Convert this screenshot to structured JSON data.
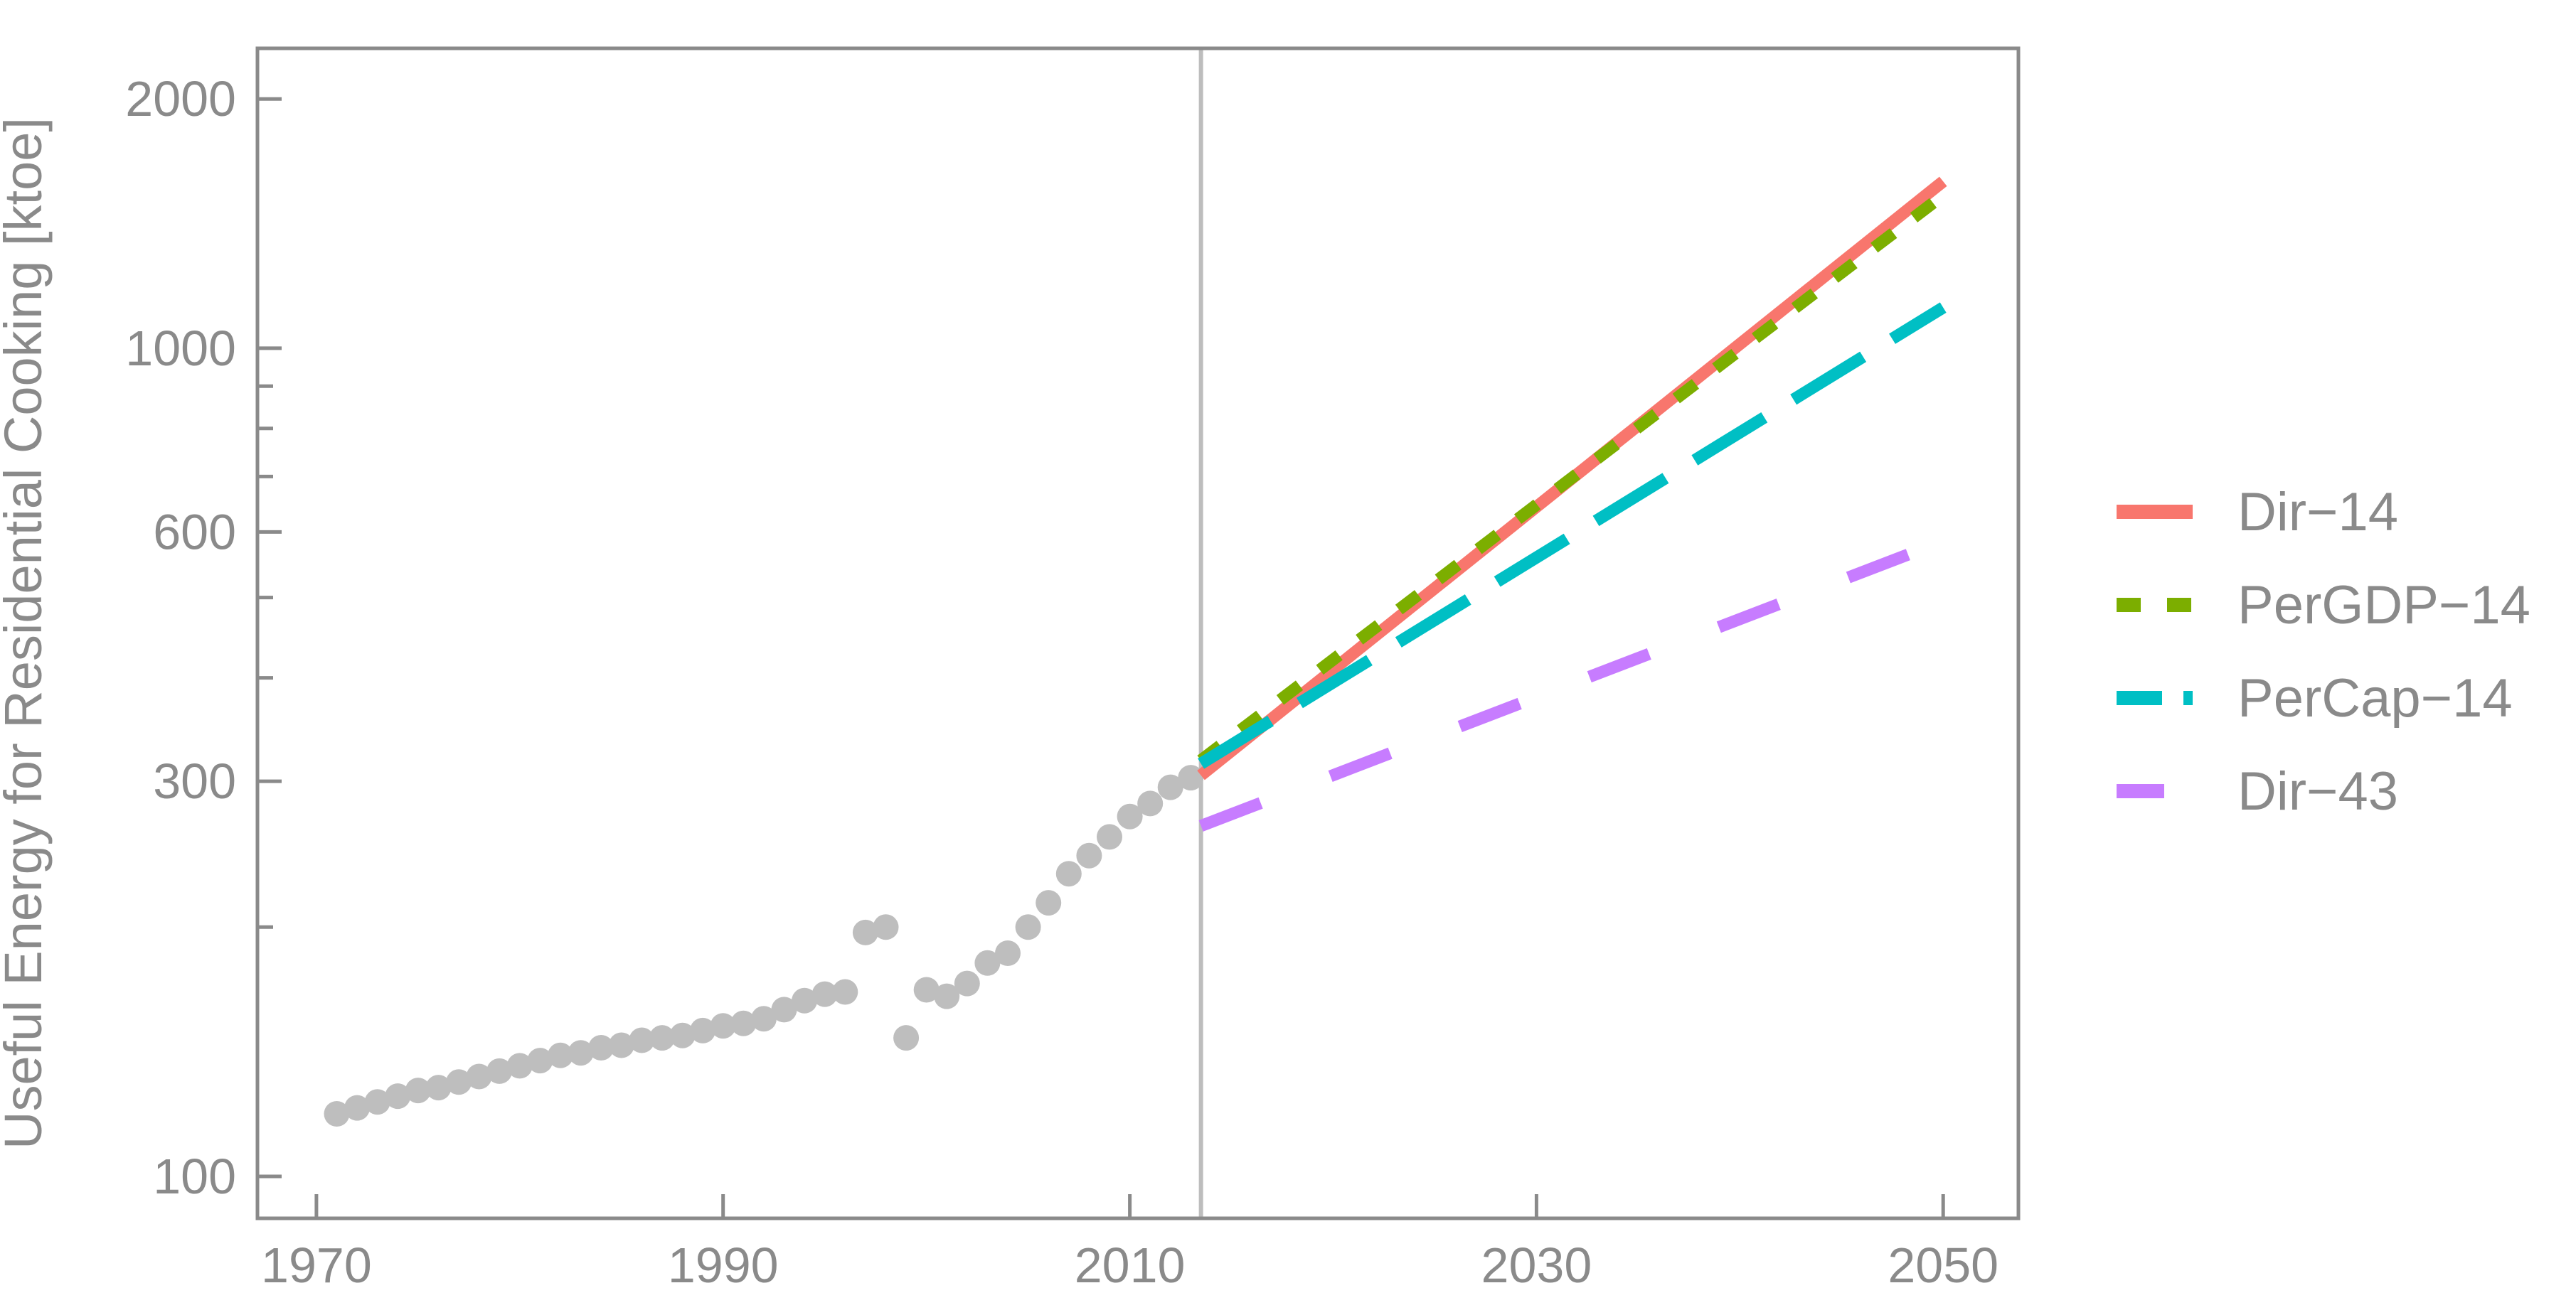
{
  "chart_data": {
    "type": "line",
    "title": "",
    "xlabel": "",
    "ylabel": "Useful Energy for Residential Cooking [ktoe]",
    "y_scale": "log",
    "xlim": [
      1967.1,
      2053.7
    ],
    "ylim": [
      89,
      2302
    ],
    "x_ticks": [
      1970,
      1990,
      2010,
      2030,
      2050
    ],
    "y_ticks_major": [
      100,
      300,
      600,
      1000,
      2000
    ],
    "y_ticks_minor": [
      200,
      400,
      500,
      700,
      800,
      900
    ],
    "grid": "off",
    "forecast_divider_year": 2013.5,
    "legend_position": "right-middle",
    "historical": {
      "name": "historical-observations",
      "color": "#BEBEBE",
      "years": [
        1971,
        1972,
        1973,
        1974,
        1975,
        1976,
        1977,
        1978,
        1979,
        1980,
        1981,
        1982,
        1983,
        1984,
        1985,
        1986,
        1987,
        1988,
        1989,
        1990,
        1991,
        1992,
        1993,
        1994,
        1995,
        1996,
        1997,
        1998,
        1999,
        2000,
        2001,
        2002,
        2003,
        2004,
        2005,
        2006,
        2007,
        2008,
        2009,
        2010,
        2011,
        2012,
        2013
      ],
      "values": [
        119,
        121,
        123,
        125,
        127,
        128,
        130,
        132,
        134,
        136,
        138,
        140,
        141,
        143,
        144,
        146,
        147,
        148,
        150,
        152,
        153,
        155,
        159,
        163,
        166,
        167,
        197,
        200,
        147,
        168,
        165,
        171,
        181,
        186,
        200,
        214,
        232,
        244,
        257,
        272,
        282,
        295,
        303
      ]
    },
    "series": [
      {
        "name": "Dir−14",
        "color": "#F8766D",
        "line_style": "solid",
        "points": [
          [
            2013.5,
            305
          ],
          [
            2050,
            1590
          ]
        ]
      },
      {
        "name": "PerGDP−14",
        "color": "#7CAE00",
        "line_style": "short-dash",
        "points": [
          [
            2013.5,
            318
          ],
          [
            2050,
            1530
          ]
        ]
      },
      {
        "name": "PerCap−14",
        "color": "#00BFC4",
        "line_style": "long-dash",
        "points": [
          [
            2013.5,
            315
          ],
          [
            2050,
            1120
          ]
        ]
      },
      {
        "name": "Dir−43",
        "color": "#C77CFF",
        "line_style": "sparse-dash",
        "points": [
          [
            2013.5,
            265
          ],
          [
            2050,
            585
          ]
        ]
      }
    ]
  },
  "colors": {
    "axis_text": "#8A8A8A",
    "frame": "#8A8A8A",
    "divider": "#BDBDBD",
    "background": "#FFFFFF"
  }
}
